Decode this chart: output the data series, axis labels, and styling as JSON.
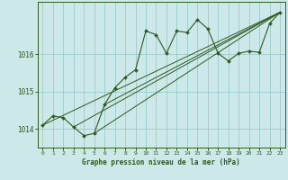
{
  "title": "Graphe pression niveau de la mer (hPa)",
  "bg_color": "#cce8e8",
  "grid_color": "#99cccc",
  "line_color": "#2d5a1e",
  "xlim": [
    -0.5,
    23.5
  ],
  "ylim": [
    1013.5,
    1017.4
  ],
  "yticks": [
    1014,
    1015,
    1016
  ],
  "xticks": [
    0,
    1,
    2,
    3,
    4,
    5,
    6,
    7,
    8,
    9,
    10,
    11,
    12,
    13,
    14,
    15,
    16,
    17,
    18,
    19,
    20,
    21,
    22,
    23
  ],
  "main_line": [
    [
      0,
      1014.1
    ],
    [
      1,
      1014.35
    ],
    [
      2,
      1014.3
    ],
    [
      3,
      1014.05
    ],
    [
      4,
      1013.82
    ],
    [
      5,
      1013.88
    ],
    [
      6,
      1014.65
    ],
    [
      7,
      1015.1
    ],
    [
      8,
      1015.38
    ],
    [
      9,
      1015.58
    ],
    [
      10,
      1016.62
    ],
    [
      11,
      1016.52
    ],
    [
      12,
      1016.02
    ],
    [
      13,
      1016.62
    ],
    [
      14,
      1016.58
    ],
    [
      15,
      1016.92
    ],
    [
      16,
      1016.68
    ],
    [
      17,
      1016.02
    ],
    [
      18,
      1015.82
    ],
    [
      19,
      1016.02
    ],
    [
      20,
      1016.08
    ],
    [
      21,
      1016.05
    ],
    [
      22,
      1016.82
    ],
    [
      23,
      1017.12
    ]
  ],
  "trend_lines": [
    [
      [
        0,
        1014.1
      ],
      [
        23,
        1017.12
      ]
    ],
    [
      [
        3,
        1014.05
      ],
      [
        23,
        1017.12
      ]
    ],
    [
      [
        5,
        1013.88
      ],
      [
        23,
        1017.12
      ]
    ],
    [
      [
        6,
        1014.65
      ],
      [
        23,
        1017.12
      ]
    ]
  ]
}
